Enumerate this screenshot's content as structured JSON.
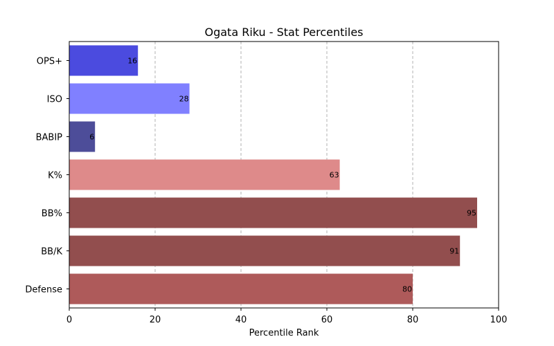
{
  "chart_data": {
    "type": "bar",
    "orientation": "horizontal",
    "title": "Ogata Riku - Stat Percentiles",
    "xlabel": "Percentile Rank",
    "ylabel": "",
    "xlim": [
      0,
      100
    ],
    "xticks": [
      0,
      20,
      40,
      60,
      80,
      100
    ],
    "grid": "vertical-dashed",
    "categories": [
      "OPS+",
      "ISO",
      "BABIP",
      "K%",
      "BB%",
      "BB/K",
      "Defense"
    ],
    "values": [
      16,
      28,
      6,
      63,
      95,
      91,
      80
    ],
    "colors": [
      "#4b4bdf",
      "#8080ff",
      "#4d4d99",
      "#de8a8a",
      "#924e4e",
      "#924e4e",
      "#ae5a5a"
    ]
  }
}
